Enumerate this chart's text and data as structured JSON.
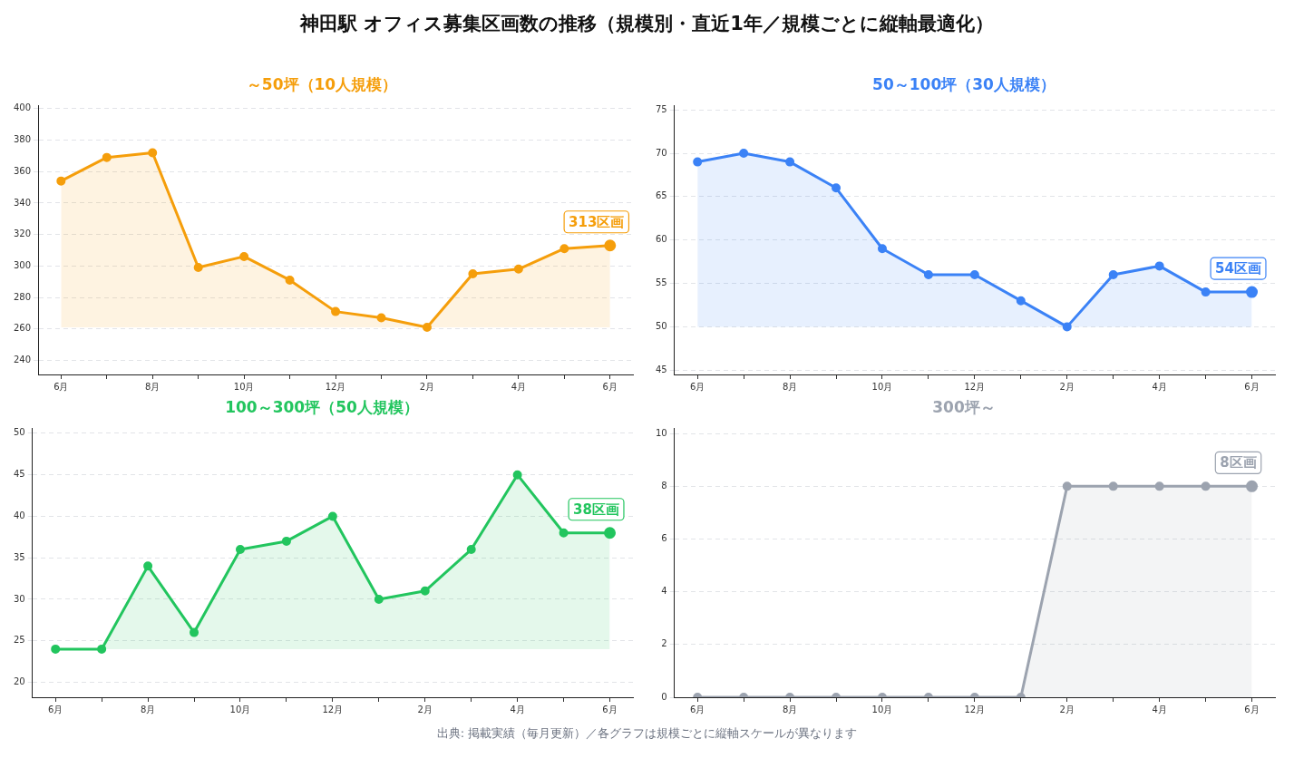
{
  "chart_data": [
    {
      "type": "other",
      "title": "神田駅 オフィス募集区画数の推移（規模別・直近1年／規模ごとに縦軸最適化）",
      "annotations": [
        "出典: 掲載実績（毎月更新）／各グラフは規模ごとに縦軸スケールが異なります"
      ]
    },
    {
      "type": "area",
      "title": "～50坪（10人規模）",
      "categories": [
        "6月",
        null,
        "8月",
        null,
        "10月",
        null,
        "12月",
        null,
        "2月",
        null,
        "4月",
        null,
        "6月"
      ],
      "series": [
        {
          "color": "#f59e0b",
          "values": [
            354,
            369,
            372,
            299,
            306,
            291,
            271,
            267,
            261,
            295,
            298,
            311,
            313
          ]
        }
      ],
      "ylim": [
        231,
        402
      ],
      "yticks": [
        240,
        260,
        280,
        300,
        320,
        340,
        360,
        380,
        400
      ],
      "grid": "y",
      "marker": "circle",
      "annotations": [
        "313区画"
      ]
    },
    {
      "type": "area",
      "title": "50～100坪（30人規模）",
      "categories": [
        "6月",
        null,
        "8月",
        null,
        "10月",
        null,
        "12月",
        null,
        "2月",
        null,
        "4月",
        null,
        "6月"
      ],
      "series": [
        {
          "color": "#3b82f6",
          "values": [
            69,
            70,
            69,
            66,
            59,
            56,
            56,
            53,
            50,
            56,
            57,
            54,
            54
          ]
        }
      ],
      "ylim": [
        44.5,
        75.5
      ],
      "yticks": [
        45,
        50,
        55,
        60,
        65,
        70,
        75
      ],
      "grid": "y",
      "marker": "circle",
      "annotations": [
        "54区画"
      ]
    },
    {
      "type": "area",
      "title": "100～300坪（50人規模）",
      "categories": [
        "6月",
        null,
        "8月",
        null,
        "10月",
        null,
        "12月",
        null,
        "2月",
        null,
        "4月",
        null,
        "6月"
      ],
      "series": [
        {
          "color": "#22c55e",
          "values": [
            24,
            24,
            34,
            26,
            36,
            37,
            40,
            30,
            31,
            36,
            45,
            38,
            38
          ]
        }
      ],
      "ylim": [
        18.2,
        50.6
      ],
      "yticks": [
        20,
        25,
        30,
        35,
        40,
        45,
        50
      ],
      "grid": "y",
      "marker": "circle",
      "annotations": [
        "38区画"
      ]
    },
    {
      "type": "area",
      "title": "300坪～",
      "categories": [
        "6月",
        null,
        "8月",
        null,
        "10月",
        null,
        "12月",
        null,
        "2月",
        null,
        "4月",
        null,
        "6月"
      ],
      "series": [
        {
          "color": "#9ca3af",
          "values": [
            0,
            0,
            0,
            0,
            0,
            0,
            0,
            0,
            8,
            8,
            8,
            8,
            8
          ]
        }
      ],
      "ylim": [
        0,
        10.2
      ],
      "yticks": [
        0,
        2,
        4,
        6,
        8,
        10
      ],
      "grid": "y",
      "marker": "circle",
      "annotations": [
        "8区画"
      ]
    }
  ]
}
